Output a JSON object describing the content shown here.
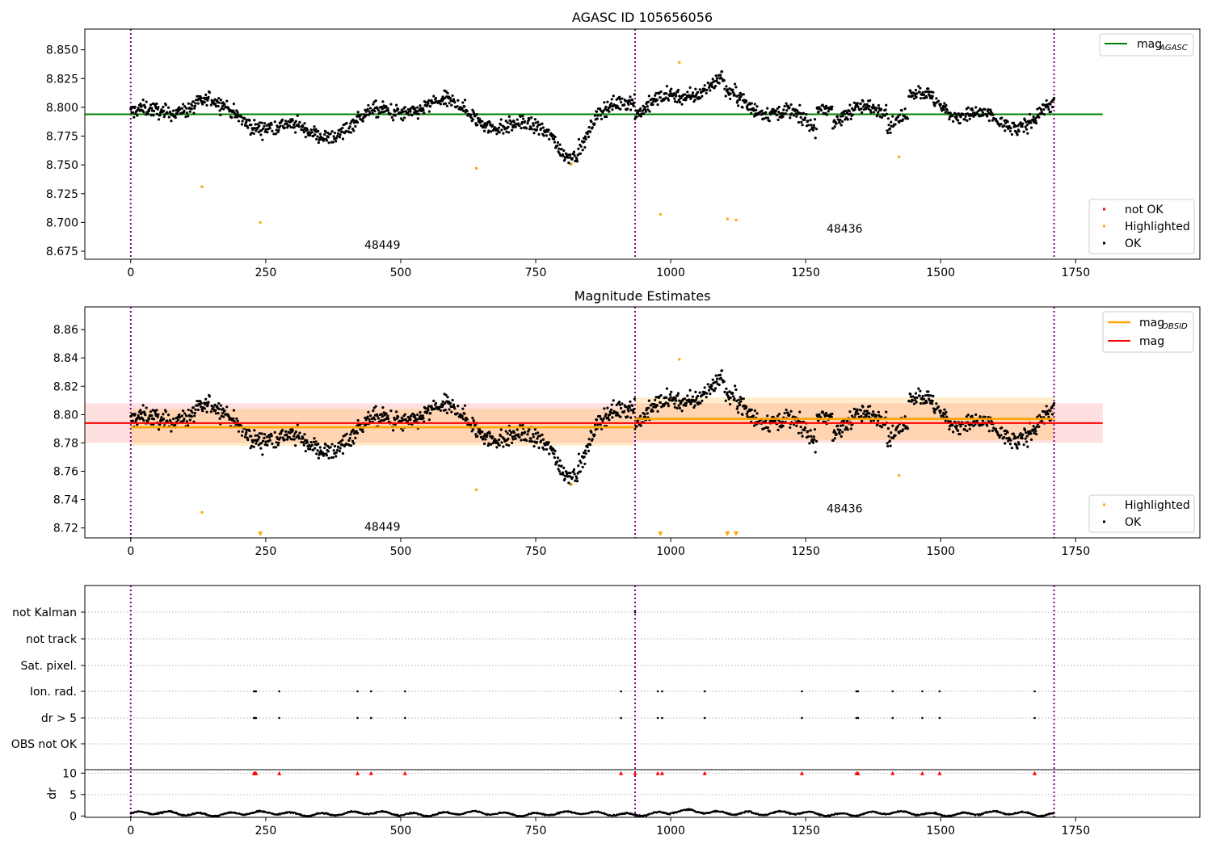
{
  "figure": {
    "panels": [
      "agasc",
      "estimates",
      "flags"
    ]
  },
  "chart_data": [
    {
      "id": "agasc",
      "type": "scatter",
      "title": "AGASC ID 105656056",
      "xlim": [
        -85,
        1980
      ],
      "ylim": [
        8.668,
        8.868
      ],
      "xticks": [
        0,
        250,
        500,
        750,
        1000,
        1250,
        1500,
        1750
      ],
      "yticks": [
        8.675,
        8.7,
        8.725,
        8.75,
        8.775,
        8.8,
        8.825,
        8.85
      ],
      "ytick_decimals": 3,
      "obs_boundaries": [
        0,
        934,
        1710
      ],
      "obs_labels": [
        {
          "text": "48449",
          "x": 466,
          "y": 8.677
        },
        {
          "text": "48436",
          "x": 1322,
          "y": 8.691
        }
      ],
      "reference_line": {
        "name": "mag_AGASC",
        "y": 8.794,
        "x": [
          -85,
          1800
        ],
        "color": "#008000"
      },
      "highlighted_points": [
        {
          "x": 132,
          "y": 8.731
        },
        {
          "x": 240,
          "y": 8.7
        },
        {
          "x": 640,
          "y": 8.747
        },
        {
          "x": 816,
          "y": 8.751
        },
        {
          "x": 981,
          "y": 8.707
        },
        {
          "x": 1016,
          "y": 8.839
        },
        {
          "x": 1105,
          "y": 8.703
        },
        {
          "x": 1121,
          "y": 8.702
        },
        {
          "x": 1423,
          "y": 8.757
        }
      ],
      "legend_top": {
        "position": "top-right",
        "entries": [
          {
            "label": "mag",
            "sub": "AGASC",
            "color": "#008000"
          }
        ]
      },
      "legend_bottom": {
        "position": "bottom-right",
        "entries": [
          {
            "label": "not OK",
            "color": "#ff0000"
          },
          {
            "label": "Highlighted",
            "color": "#ffa500"
          },
          {
            "label": "OK",
            "color": "#000000"
          }
        ]
      }
    },
    {
      "id": "estimates",
      "type": "scatter",
      "title": "Magnitude Estimates",
      "xlim": [
        -85,
        1980
      ],
      "ylim": [
        8.713,
        8.876
      ],
      "xticks": [
        0,
        250,
        500,
        750,
        1000,
        1250,
        1500,
        1750
      ],
      "yticks": [
        8.72,
        8.74,
        8.76,
        8.78,
        8.8,
        8.82,
        8.84,
        8.86
      ],
      "ytick_decimals": 2,
      "obs_boundaries": [
        0,
        934,
        1710
      ],
      "obs_labels": [
        {
          "text": "48449",
          "x": 466,
          "y": 8.718
        },
        {
          "text": "48436",
          "x": 1322,
          "y": 8.731
        }
      ],
      "mag_line": {
        "name": "mag",
        "y": 8.794,
        "band": [
          8.78,
          8.808
        ],
        "x": [
          -85,
          1800
        ],
        "color": "#ff0000"
      },
      "obsid_segments": [
        {
          "x": [
            0,
            934
          ],
          "y": 8.791,
          "band": [
            8.778,
            8.804
          ]
        },
        {
          "x": [
            934,
            1710
          ],
          "y": 8.797,
          "band": [
            8.782,
            8.812
          ]
        }
      ],
      "highlighted_points": [
        {
          "x": 132,
          "y": 8.731
        },
        {
          "x": 640,
          "y": 8.747
        },
        {
          "x": 816,
          "y": 8.751
        },
        {
          "x": 1016,
          "y": 8.839
        },
        {
          "x": 1423,
          "y": 8.757
        }
      ],
      "offscale_markers": [
        240,
        981,
        1105,
        1121
      ],
      "legend_top": {
        "position": "top-right",
        "entries": [
          {
            "label": "mag",
            "sub": "OBSID",
            "color": "#ffa500"
          },
          {
            "label": "mag",
            "sub": "",
            "color": "#ff0000"
          }
        ]
      },
      "legend_bottom": {
        "position": "bottom-right",
        "entries": [
          {
            "label": "Highlighted",
            "color": "#ffa500"
          },
          {
            "label": "OK",
            "color": "#000000"
          }
        ]
      }
    },
    {
      "id": "flags",
      "type": "scatter",
      "xlim": [
        -85,
        1980
      ],
      "xticks": [
        0,
        250,
        500,
        750,
        1000,
        1250,
        1500,
        1750
      ],
      "obs_boundaries": [
        0,
        934,
        1710
      ],
      "flag_rows": [
        "not Kalman",
        "not track",
        "Sat. pixel.",
        "Ion. rad.",
        "dr > 5",
        "OBS not OK"
      ],
      "flag_points": {
        "not Kalman": [
          934
        ],
        "Ion. rad.": [
          228,
          230,
          232,
          275,
          420,
          445,
          508,
          908,
          976,
          984,
          1063,
          1243,
          1344,
          1347,
          1411,
          1466,
          1498,
          1674
        ],
        "dr > 5": [
          228,
          230,
          232,
          275,
          420,
          445,
          508,
          908,
          976,
          984,
          1063,
          1243,
          1344,
          1347,
          1411,
          1466,
          1498,
          1674
        ]
      },
      "dr_axis": {
        "label": "dr",
        "ylim": [
          -0.3,
          10.8
        ],
        "yticks": [
          0,
          5,
          10
        ]
      },
      "dr_clipped_points": [
        228,
        230,
        232,
        275,
        420,
        445,
        508,
        908,
        934,
        976,
        984,
        1063,
        1243,
        1344,
        1347,
        1411,
        1466,
        1498,
        1674
      ]
    }
  ]
}
